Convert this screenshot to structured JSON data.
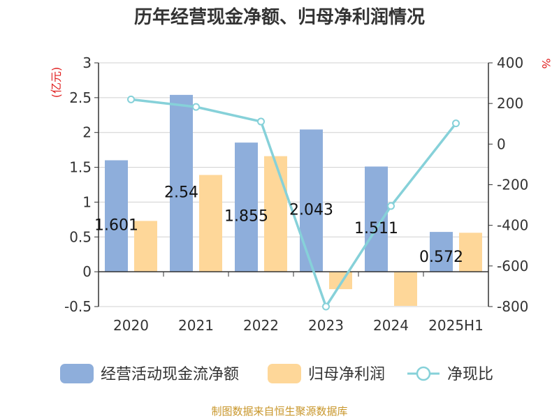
{
  "chart_data": {
    "type": "bar",
    "title": "历年经营现金净额、归母净利润情况",
    "categories": [
      "2020",
      "2021",
      "2022",
      "2023",
      "2024",
      "2025H1"
    ],
    "series": [
      {
        "name": "经营活动现金流净额",
        "kind": "bar",
        "axis": "left",
        "color": "#8eaedb",
        "values": [
          1.601,
          2.54,
          1.855,
          2.043,
          1.511,
          0.572
        ],
        "labels": [
          "1.601",
          "2.54",
          "1.855",
          "2.043",
          "1.511",
          "0.572"
        ]
      },
      {
        "name": "归母净利润",
        "kind": "bar",
        "axis": "left",
        "color": "#fed799",
        "values": [
          0.73,
          1.39,
          1.66,
          -0.25,
          -0.49,
          0.56
        ]
      },
      {
        "name": "净现比",
        "kind": "line",
        "axis": "right",
        "color": "#86d1d9",
        "values": [
          220,
          183,
          111,
          -800,
          -305,
          102
        ]
      }
    ],
    "y_left": {
      "unit": "(亿元)",
      "ticks": [
        "3",
        "2.5",
        "2",
        "1.5",
        "1",
        "0.5",
        "0",
        "-0.5"
      ],
      "range": [
        -0.5,
        3
      ]
    },
    "y_right": {
      "unit": "%",
      "ticks": [
        "400",
        "200",
        "0",
        "-200",
        "-400",
        "-600",
        "-800"
      ],
      "range": [
        -800,
        400
      ]
    },
    "grid": true,
    "legend_position": "bottom"
  },
  "source_note": "制图数据来自恒生聚源数据库"
}
